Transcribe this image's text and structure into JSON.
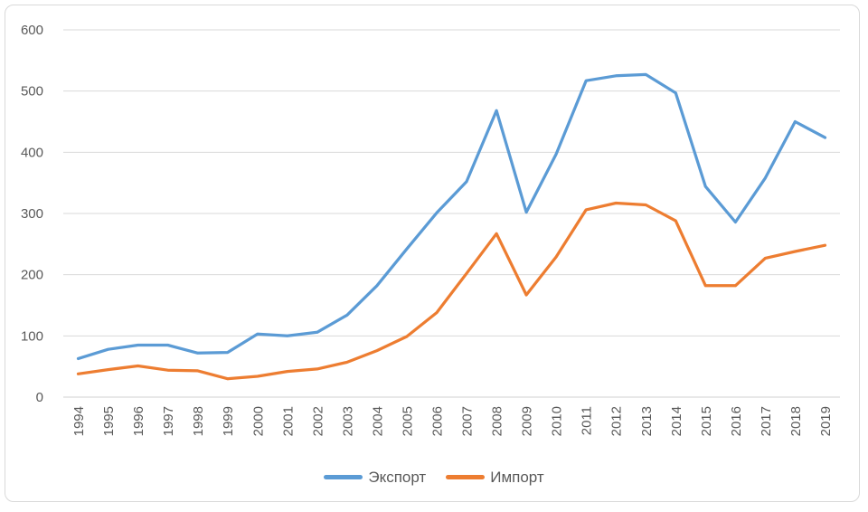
{
  "chart_data": {
    "type": "line",
    "title": "",
    "categories": [
      "1994",
      "1995",
      "1996",
      "1997",
      "1998",
      "1999",
      "2000",
      "2001",
      "2002",
      "2003",
      "2004",
      "2005",
      "2006",
      "2007",
      "2008",
      "2009",
      "2010",
      "2011",
      "2012",
      "2013",
      "2014",
      "2015",
      "2016",
      "2017",
      "2018",
      "2019"
    ],
    "series": [
      {
        "id": "export",
        "name": "Экспорт",
        "color": "#5B9BD5",
        "values": [
          63,
          78,
          85,
          85,
          72,
          73,
          103,
          100,
          106,
          134,
          182,
          242,
          301,
          352,
          468,
          302,
          397,
          517,
          525,
          527,
          497,
          344,
          286,
          358,
          450,
          424
        ]
      },
      {
        "id": "import",
        "name": "Импорт",
        "color": "#ED7D31",
        "values": [
          38,
          45,
          51,
          44,
          43,
          30,
          34,
          42,
          46,
          57,
          76,
          99,
          138,
          202,
          267,
          167,
          229,
          306,
          317,
          314,
          288,
          182,
          182,
          227,
          238,
          248
        ]
      }
    ],
    "xlabel": "",
    "ylabel": "",
    "ylim": [
      0,
      600
    ],
    "yticks": [
      0,
      100,
      200,
      300,
      400,
      500,
      600
    ],
    "grid": "horizontal",
    "legend_position": "bottom",
    "colors": {
      "gridline": "#D9D9D9",
      "axis_line": "#D1D1D1",
      "tick_label": "#595959",
      "frame_border": "#D9D9D9",
      "background": "#ffffff"
    }
  }
}
